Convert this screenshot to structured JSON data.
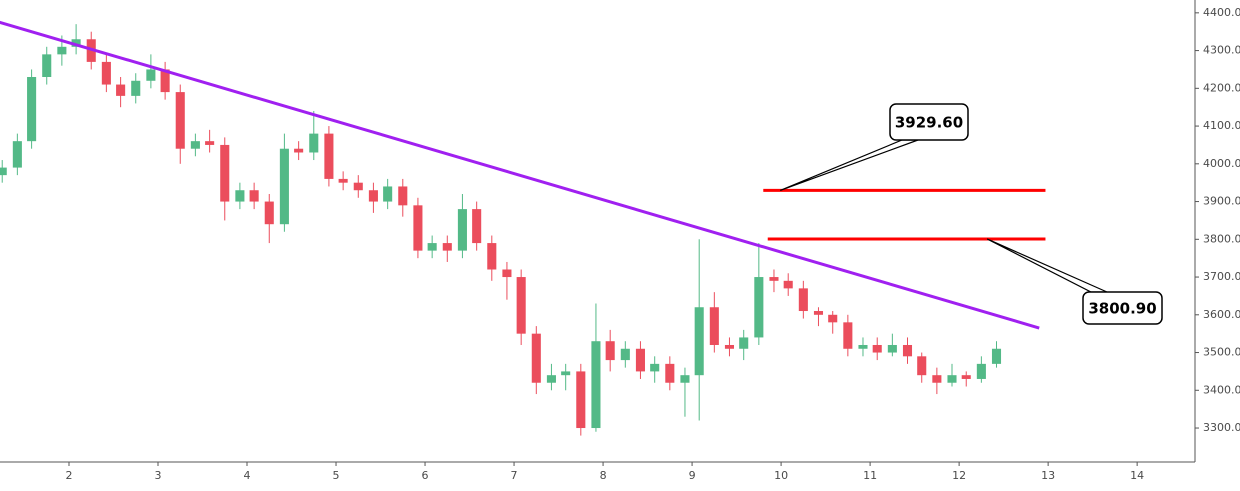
{
  "chart_data": {
    "type": "candlestick",
    "x": [
      1.25,
      1.42,
      1.58,
      1.75,
      1.92,
      2.08,
      2.25,
      2.42,
      2.58,
      2.75,
      2.92,
      3.08,
      3.25,
      3.42,
      3.58,
      3.75,
      3.92,
      4.08,
      4.25,
      4.42,
      4.58,
      4.75,
      4.92,
      5.08,
      5.25,
      5.42,
      5.58,
      5.75,
      5.92,
      6.08,
      6.25,
      6.42,
      6.58,
      6.75,
      6.92,
      7.08,
      7.25,
      7.42,
      7.58,
      7.75,
      7.92,
      8.08,
      8.25,
      8.42,
      8.58,
      8.75,
      8.92,
      9.08,
      9.25,
      9.42,
      9.58,
      9.75,
      9.92,
      10.08,
      10.25,
      10.42,
      10.58,
      10.75,
      10.92,
      11.08,
      11.25,
      11.42,
      11.58,
      11.75,
      11.92,
      12.08,
      12.25,
      12.42
    ],
    "open": [
      3970,
      3990,
      4060,
      4230,
      4290,
      4310,
      4330,
      4270,
      4210,
      4180,
      4220,
      4250,
      4190,
      4040,
      4060,
      4050,
      3900,
      3930,
      3900,
      3840,
      4040,
      4030,
      4080,
      3960,
      3950,
      3930,
      3900,
      3940,
      3890,
      3770,
      3790,
      3770,
      3880,
      3790,
      3720,
      3700,
      3550,
      3420,
      3440,
      3450,
      3300,
      3530,
      3480,
      3510,
      3450,
      3470,
      3420,
      3440,
      3620,
      3520,
      3510,
      3540,
      3700,
      3690,
      3670,
      3610,
      3600,
      3580,
      3510,
      3520,
      3500,
      3520,
      3490,
      3440,
      3420,
      3440,
      3430,
      3470
    ],
    "high": [
      4010,
      4080,
      4250,
      4310,
      4340,
      4370,
      4350,
      4290,
      4230,
      4240,
      4290,
      4270,
      4210,
      4080,
      4090,
      4070,
      3950,
      3950,
      3920,
      4080,
      4060,
      4140,
      4100,
      3980,
      3970,
      3950,
      3960,
      3960,
      3910,
      3810,
      3810,
      3920,
      3900,
      3810,
      3740,
      3720,
      3570,
      3470,
      3470,
      3470,
      3630,
      3560,
      3530,
      3530,
      3490,
      3490,
      3460,
      3800,
      3660,
      3540,
      3560,
      3790,
      3720,
      3710,
      3690,
      3620,
      3610,
      3600,
      3540,
      3540,
      3550,
      3540,
      3500,
      3460,
      3470,
      3450,
      3490,
      3530
    ],
    "low": [
      3950,
      3970,
      4040,
      4210,
      4260,
      4290,
      4250,
      4190,
      4150,
      4160,
      4200,
      4170,
      4000,
      4020,
      4030,
      3850,
      3880,
      3880,
      3790,
      3820,
      4010,
      4010,
      3940,
      3930,
      3910,
      3870,
      3880,
      3860,
      3750,
      3750,
      3740,
      3750,
      3770,
      3690,
      3640,
      3520,
      3390,
      3400,
      3400,
      3280,
      3290,
      3450,
      3460,
      3430,
      3420,
      3400,
      3330,
      3320,
      3500,
      3490,
      3480,
      3520,
      3660,
      3650,
      3590,
      3570,
      3550,
      3490,
      3490,
      3480,
      3490,
      3470,
      3420,
      3390,
      3410,
      3410,
      3420,
      3460
    ],
    "close": [
      3990,
      4060,
      4230,
      4290,
      4310,
      4330,
      4270,
      4210,
      4180,
      4220,
      4250,
      4190,
      4040,
      4060,
      4050,
      3900,
      3930,
      3900,
      3840,
      4040,
      4030,
      4080,
      3960,
      3950,
      3930,
      3900,
      3940,
      3890,
      3770,
      3790,
      3770,
      3880,
      3790,
      3720,
      3700,
      3550,
      3420,
      3440,
      3450,
      3300,
      3530,
      3480,
      3510,
      3450,
      3470,
      3420,
      3440,
      3620,
      3520,
      3510,
      3540,
      3700,
      3690,
      3670,
      3610,
      3600,
      3580,
      3510,
      3520,
      3500,
      3520,
      3490,
      3440,
      3420,
      3440,
      3430,
      3470,
      3510
    ],
    "up_color": "#53b987",
    "down_color": "#eb4d5c",
    "xlim": [
      1.225,
      14.65
    ],
    "ylim": [
      3210,
      4434
    ],
    "xticks": [
      2,
      3,
      4,
      5,
      6,
      7,
      8,
      9,
      10,
      11,
      12,
      13,
      14
    ],
    "yticks": [
      {
        "value": 3300,
        "label": "3300.0"
      },
      {
        "value": 3400,
        "label": "3400.0"
      },
      {
        "value": 3500,
        "label": "3500.0"
      },
      {
        "value": 3600,
        "label": "3600.0"
      },
      {
        "value": 3700,
        "label": "3700.0"
      },
      {
        "value": 3800,
        "label": "3800.0"
      },
      {
        "value": 3900,
        "label": "3900.0"
      },
      {
        "value": 4000,
        "label": "4000.0"
      },
      {
        "value": 4100,
        "label": "4100.0"
      },
      {
        "value": 4200,
        "label": "4200.0"
      },
      {
        "value": 4300,
        "label": "4300.0"
      },
      {
        "value": 4400,
        "label": "4400.0"
      }
    ],
    "trendline": {
      "x": [
        1.22,
        12.9
      ],
      "y": [
        4375,
        3565
      ],
      "color": "#a020f0"
    },
    "levels": [
      {
        "value": 3929.6,
        "label": "3929.60",
        "x": [
          9.8,
          12.97
        ],
        "color": "#ff0000"
      },
      {
        "value": 3800.9,
        "label": "3800.90",
        "x": [
          9.85,
          12.97
        ],
        "color": "#ff0000"
      }
    ]
  }
}
